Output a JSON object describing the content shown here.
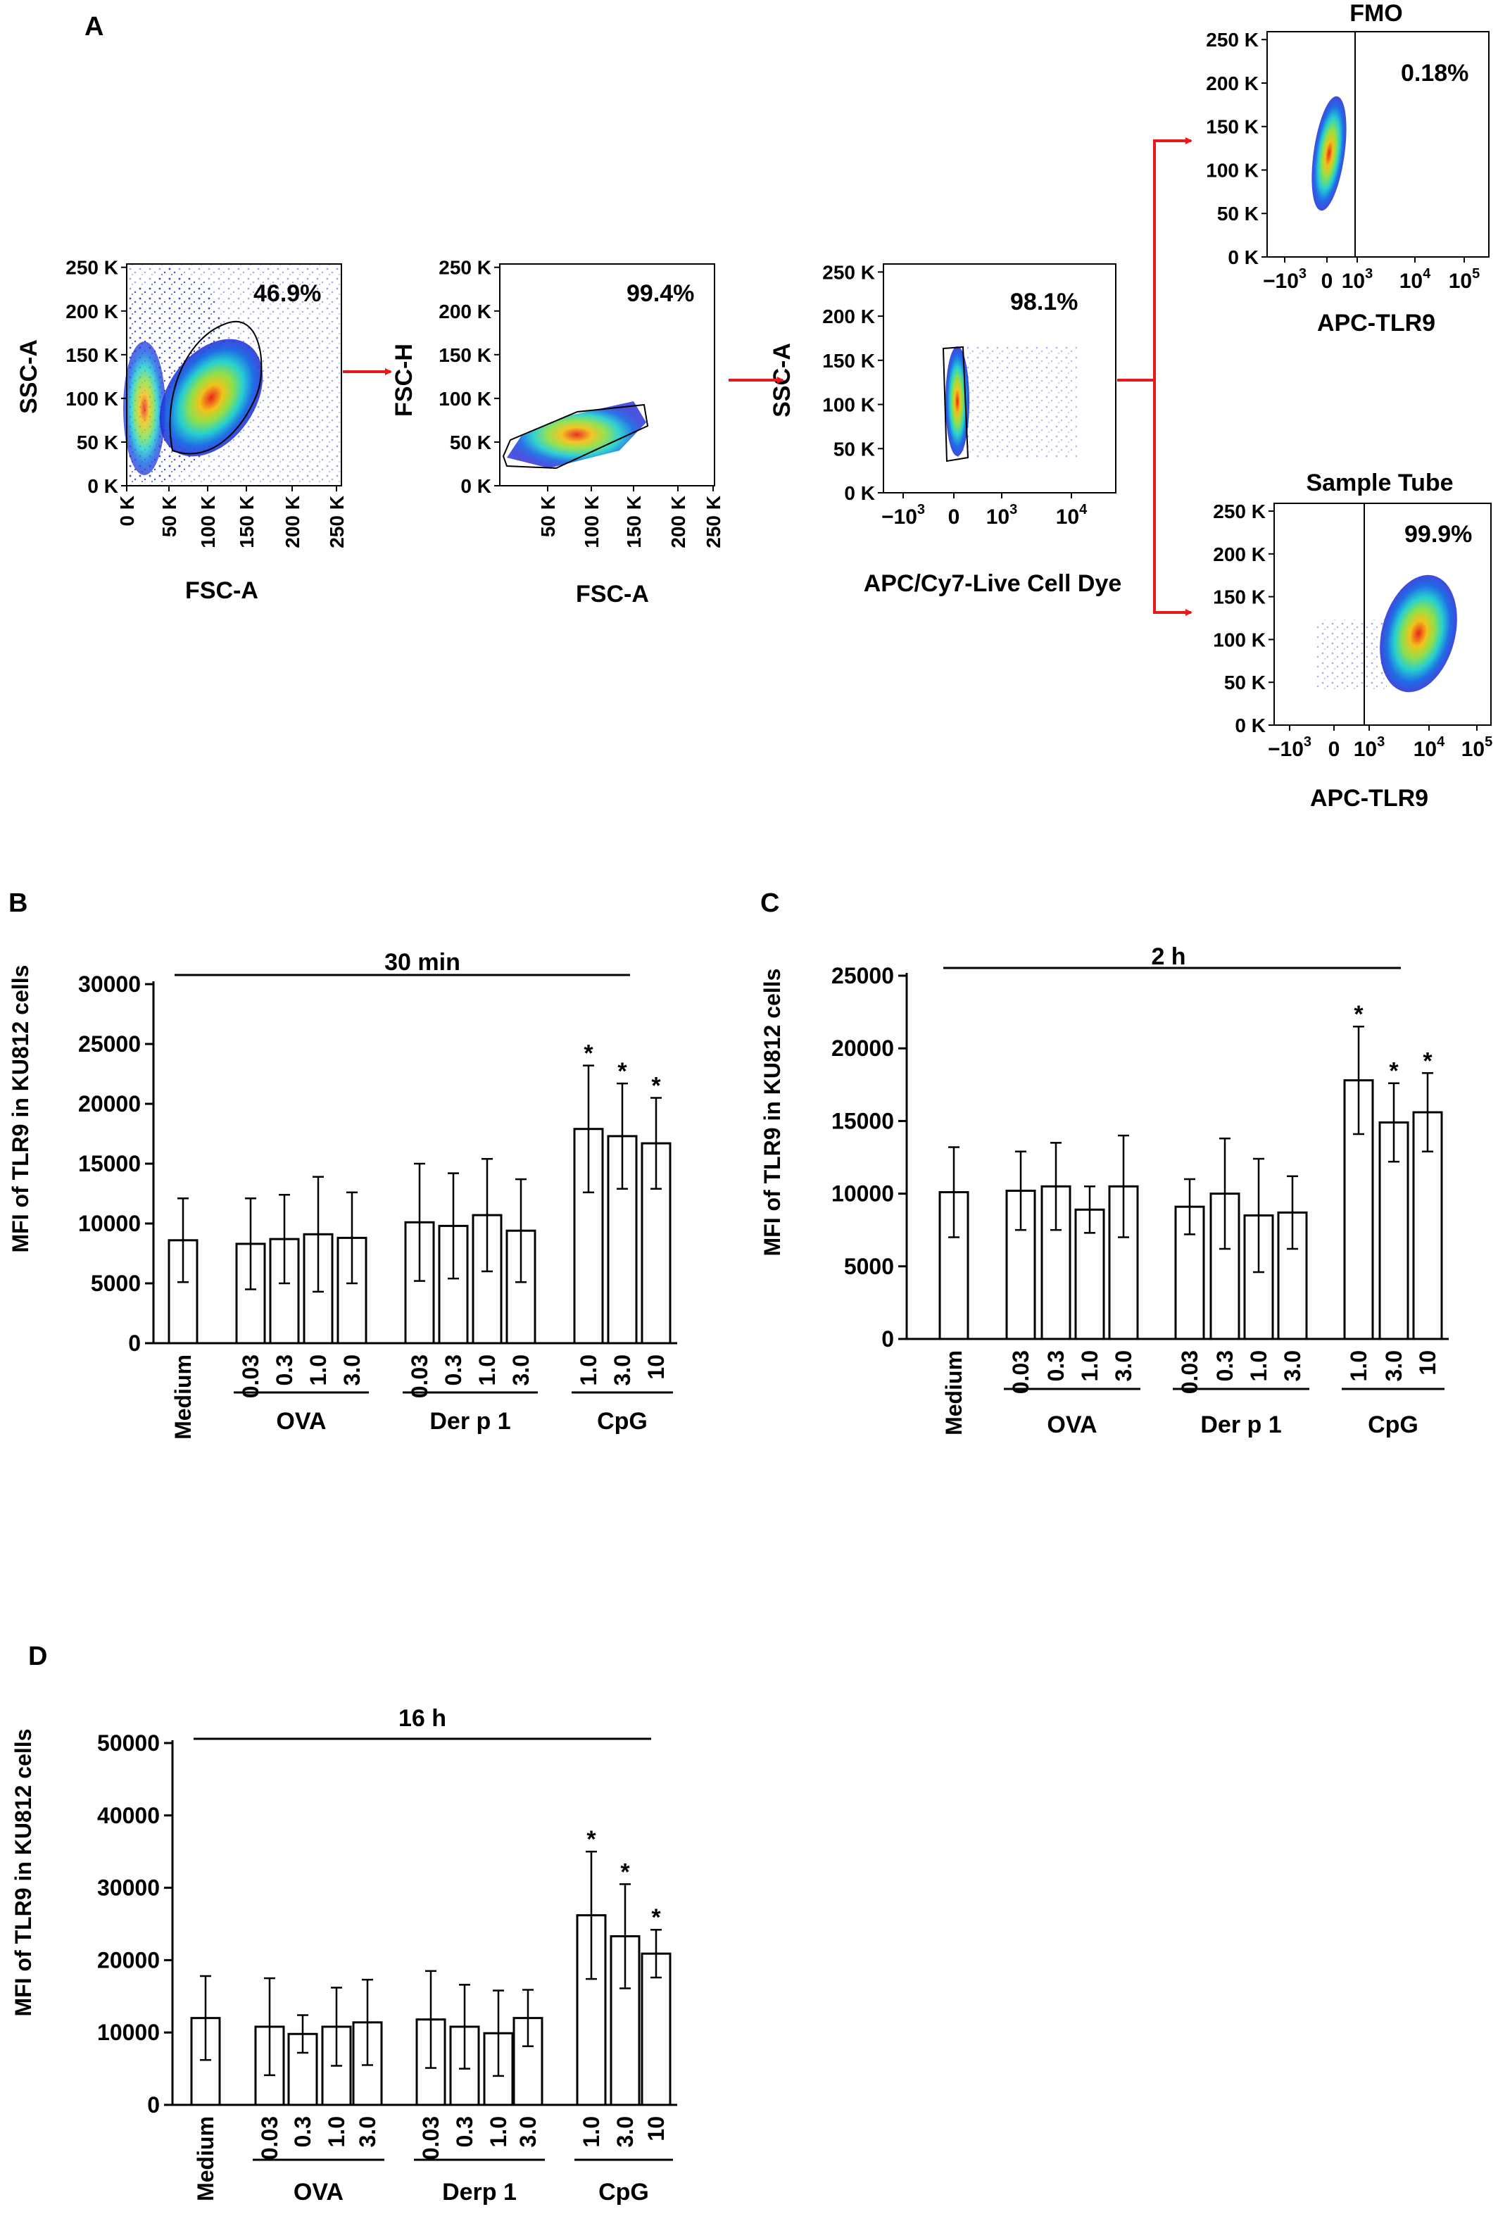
{
  "figure": {
    "panel_labels": {
      "A": "A",
      "B": "B",
      "C": "C",
      "D": "D"
    },
    "colors": {
      "arrow": "#e8191b",
      "axis": "#000000",
      "bar_fill": "#ffffff",
      "density_low": "#1f2bd6",
      "density_mid": "#27d0d0",
      "density_high": "#e8251b"
    }
  },
  "flow": {
    "p1": {
      "xlabel": "FSC-A",
      "ylabel": "SSC-A",
      "gate_pct": "46.9%",
      "xticks": [
        "0 K",
        "50 K",
        "100 K",
        "150 K",
        "200 K",
        "250 K"
      ],
      "yticks": [
        "0 K",
        "50 K",
        "100 K",
        "150 K",
        "200 K",
        "250 K"
      ]
    },
    "p2": {
      "xlabel": "FSC-A",
      "ylabel": "FSC-H",
      "gate_pct": "99.4%",
      "xticks": [
        "50 K",
        "100 K",
        "150 K",
        "200 K",
        "250 K"
      ],
      "yticks": [
        "0 K",
        "50 K",
        "100 K",
        "150 K",
        "200 K",
        "250 K"
      ]
    },
    "p3": {
      "xlabel": "APC/Cy7-Live Cell Dye",
      "ylabel": "SSC-A",
      "gate_pct": "98.1%",
      "xticks": [
        "−10",
        "0",
        "10",
        "10"
      ],
      "xsup": [
        "3",
        "",
        "3",
        "4"
      ],
      "yticks": [
        "0 K",
        "50 K",
        "100 K",
        "150 K",
        "200 K",
        "250 K"
      ]
    },
    "p4": {
      "title": "FMO",
      "xlabel": "APC-TLR9",
      "gate_pct": "0.18%",
      "xticks": [
        "−10",
        "0",
        "10",
        "10",
        "10"
      ],
      "xsup": [
        "3",
        "",
        "3",
        "4",
        "5"
      ],
      "yticks": [
        "0 K",
        "50 K",
        "100 K",
        "150 K",
        "200 K",
        "250 K"
      ]
    },
    "p5": {
      "title": "Sample Tube",
      "xlabel": "APC-TLR9",
      "gate_pct": "99.9%",
      "xticks": [
        "−10",
        "0",
        "10",
        "10",
        "10"
      ],
      "xsup": [
        "3",
        "",
        "3",
        "4",
        "5"
      ],
      "yticks": [
        "0 K",
        "50 K",
        "100 K",
        "150 K",
        "200 K",
        "250 K"
      ]
    }
  },
  "chart_data": [
    {
      "panel": "B",
      "type": "bar",
      "title": "30 min",
      "ylabel": "MFI of TLR9 in KU812 cells",
      "ylim": [
        0,
        30000
      ],
      "yticks": [
        "0",
        "5000",
        "10000",
        "15000",
        "20000",
        "25000",
        "30000"
      ],
      "categories": [
        "Medium",
        "0.03",
        "0.3",
        "1.0",
        "3.0",
        "0.03",
        "0.3",
        "1.0",
        "3.0",
        "1.0",
        "3.0",
        "10"
      ],
      "groups": [
        {
          "name": "OVA"
        },
        {
          "name": "Der p 1"
        },
        {
          "name": "CpG"
        }
      ],
      "values": [
        8600,
        8300,
        8700,
        9100,
        8800,
        10100,
        9800,
        10700,
        9400,
        17900,
        17300,
        16700
      ],
      "errors": [
        3500,
        3800,
        3700,
        4800,
        3800,
        4900,
        4400,
        4700,
        4300,
        5300,
        4400,
        3800
      ],
      "significance": [
        "",
        "",
        "",
        "",
        "",
        "",
        "",
        "",
        "",
        "*",
        "*",
        "*"
      ]
    },
    {
      "panel": "C",
      "type": "bar",
      "title": "2 h",
      "ylabel": "MFI of TLR9 in KU812 cells",
      "ylim": [
        0,
        25000
      ],
      "yticks": [
        "0",
        "5000",
        "10000",
        "15000",
        "20000",
        "25000"
      ],
      "categories": [
        "Medium",
        "0.03",
        "0.3",
        "1.0",
        "3.0",
        "0.03",
        "0.3",
        "1.0",
        "3.0",
        "1.0",
        "3.0",
        "10"
      ],
      "groups": [
        {
          "name": "OVA"
        },
        {
          "name": "Der p 1"
        },
        {
          "name": "CpG"
        }
      ],
      "values": [
        10100,
        10200,
        10500,
        8900,
        10500,
        9100,
        10000,
        8500,
        8700,
        17800,
        14900,
        15600
      ],
      "errors": [
        3100,
        2700,
        3000,
        1600,
        3500,
        1900,
        3800,
        3900,
        2500,
        3700,
        2700,
        2700
      ],
      "significance": [
        "",
        "",
        "",
        "",
        "",
        "",
        "",
        "",
        "",
        "*",
        "*",
        "*"
      ]
    },
    {
      "panel": "D",
      "type": "bar",
      "title": "16 h",
      "ylabel": "MFI of TLR9 in KU812 cells",
      "ylim": [
        0,
        50000
      ],
      "yticks": [
        "0",
        "10000",
        "20000",
        "30000",
        "40000",
        "50000"
      ],
      "categories": [
        "Medium",
        "0.03",
        "0.3",
        "1.0",
        "3.0",
        "0.03",
        "0.3",
        "1.0",
        "3.0",
        "1.0",
        "3.0",
        "10"
      ],
      "groups": [
        {
          "name": "OVA"
        },
        {
          "name": "Derp 1"
        },
        {
          "name": "CpG"
        }
      ],
      "values": [
        12000,
        10800,
        9800,
        10800,
        11400,
        11800,
        10800,
        9900,
        12000,
        26200,
        23300,
        20900
      ],
      "errors": [
        5800,
        6700,
        2600,
        5400,
        5900,
        6700,
        5800,
        5900,
        3900,
        8800,
        7200,
        3300
      ],
      "significance": [
        "",
        "",
        "",
        "",
        "",
        "",
        "",
        "",
        "",
        "*",
        "*",
        "*"
      ]
    }
  ]
}
